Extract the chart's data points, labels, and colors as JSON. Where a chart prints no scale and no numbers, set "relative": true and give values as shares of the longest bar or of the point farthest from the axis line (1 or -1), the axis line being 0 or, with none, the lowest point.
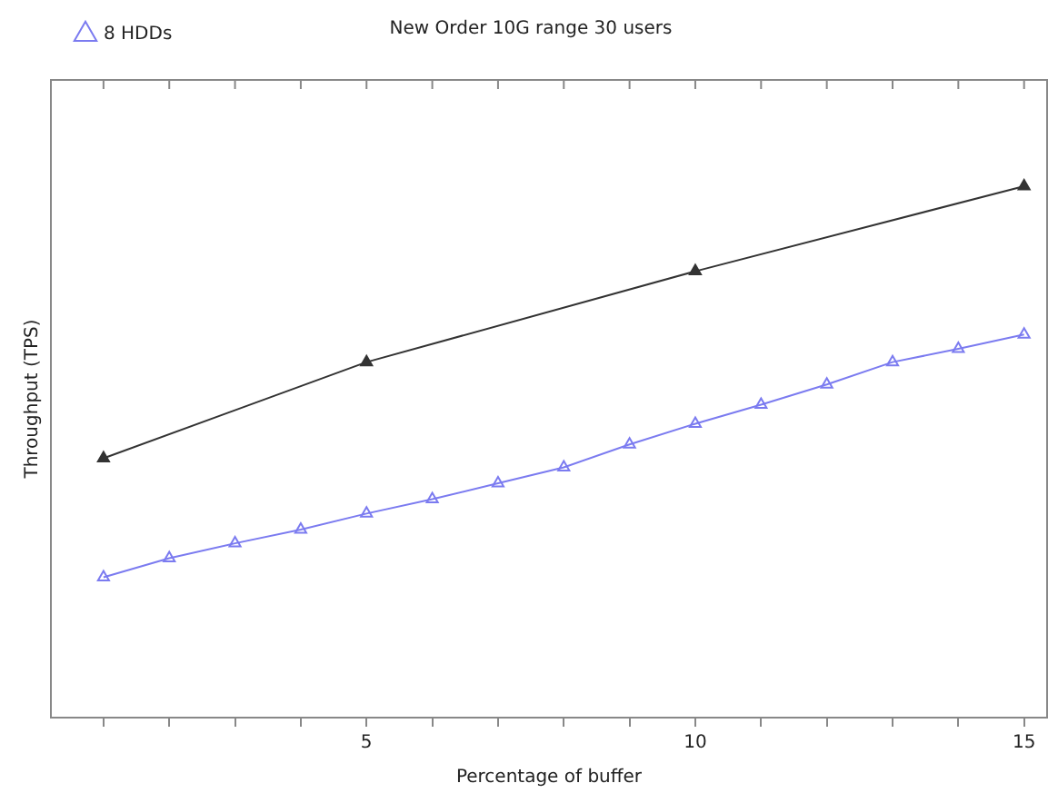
{
  "chart_data": {
    "type": "line",
    "title": "New Order 10G range 30 users",
    "xlabel": "Percentage of buffer",
    "ylabel": "Throughput (TPS)",
    "relative": true,
    "marker": "triangle",
    "legend": "top left",
    "grid": false,
    "xlim": [
      0.2,
      15.35
    ],
    "xticks": [
      {
        "value": 1,
        "label": null
      },
      {
        "value": 2,
        "label": null
      },
      {
        "value": 3,
        "label": null
      },
      {
        "value": 4,
        "label": null
      },
      5,
      {
        "value": 6,
        "label": null
      },
      {
        "value": 7,
        "label": null
      },
      {
        "value": 8,
        "label": null
      },
      {
        "value": 9,
        "label": null
      },
      10,
      {
        "value": 11,
        "label": null
      },
      {
        "value": 12,
        "label": null
      },
      {
        "value": 13,
        "label": null
      },
      {
        "value": 14,
        "label": null
      },
      15
    ],
    "series": [
      {
        "name": "8 HDDs",
        "color": "#7b7bf0",
        "x": [
          1,
          2,
          3,
          4,
          5,
          6,
          7,
          8,
          9,
          10,
          11,
          12,
          13,
          14,
          15
        ],
        "values": [
          0.264,
          0.3,
          0.328,
          0.354,
          0.384,
          0.411,
          0.441,
          0.471,
          0.514,
          0.553,
          0.589,
          0.627,
          0.669,
          0.694,
          0.721
        ]
      },
      {
        "color": "#333333",
        "x": [
          1,
          5,
          10,
          15
        ],
        "values": [
          0.488,
          0.669,
          0.84,
          1
        ]
      }
    ]
  }
}
